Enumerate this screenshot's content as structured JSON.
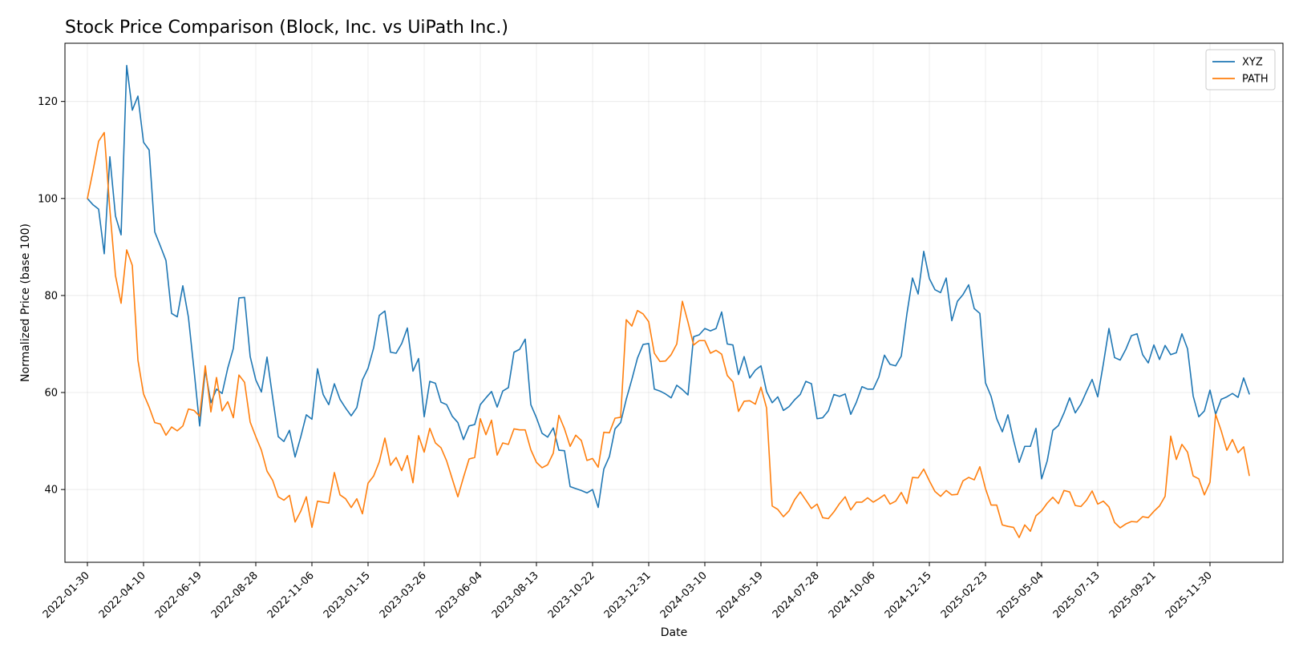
{
  "chart_data": {
    "type": "line",
    "title": "Stock Price Comparison (Block, Inc. vs UiPath Inc.)",
    "xlabel": "Date",
    "ylabel": "Normalized Price (base 100)",
    "xlim": [
      "2022-01-02",
      "2026-03-01"
    ],
    "ylim": [
      25,
      132
    ],
    "y_ticks": [
      40,
      60,
      80,
      100,
      120
    ],
    "x_ticks": [
      "2022-01-30",
      "2022-04-10",
      "2022-06-19",
      "2022-08-28",
      "2022-11-06",
      "2023-01-15",
      "2023-03-26",
      "2023-06-04",
      "2023-08-13",
      "2023-10-22",
      "2023-12-31",
      "2024-03-10",
      "2024-05-19",
      "2024-07-28",
      "2024-10-06",
      "2024-12-15",
      "2025-02-23",
      "2025-05-04",
      "2025-07-13",
      "2025-09-21",
      "2025-11-30"
    ],
    "grid": true,
    "legend_position": "upper right",
    "x_start": "2022-01-30",
    "x_step_days": 7,
    "series": [
      {
        "name": "XYZ",
        "color": "#1f77b4",
        "values": [
          100,
          98.7,
          97.8,
          88.6,
          108.6,
          96.4,
          92.5,
          127.4,
          118.2,
          121.1,
          111.6,
          110,
          93.1,
          90.2,
          87.2,
          76.3,
          75.6,
          82,
          75.5,
          64.6,
          53.1,
          64.6,
          57.9,
          60.7,
          59.8,
          65,
          69.1,
          79.5,
          79.6,
          67.4,
          62.6,
          60.1,
          67.3,
          59,
          50.9,
          49.9,
          52.2,
          46.7,
          50.8,
          55.4,
          54.5,
          64.9,
          59.6,
          57.5,
          61.8,
          58.6,
          56.8,
          55.2,
          56.9,
          62.6,
          65,
          69.2,
          75.9,
          76.8,
          68.3,
          68.1,
          70.1,
          73.3,
          64.4,
          67,
          55,
          62.3,
          61.9,
          58,
          57.5,
          55.1,
          53.8,
          50.3,
          53.1,
          53.4,
          57.5,
          58.9,
          60.2,
          57,
          60.3,
          61,
          68.3,
          68.9,
          71,
          57.5,
          54.8,
          51.6,
          50.8,
          52.7,
          48.1,
          48,
          40.6,
          40.2,
          39.8,
          39.3,
          40,
          36.3,
          44.2,
          46.8,
          52.5,
          53.8,
          58.6,
          62.7,
          67.1,
          69.9,
          70.1,
          60.7,
          60.3,
          59.7,
          58.9,
          61.5,
          60.6,
          59.5,
          71.5,
          71.9,
          73.2,
          72.7,
          73.2,
          76.6,
          70,
          69.8,
          63.7,
          67.4,
          63,
          64.6,
          65.5,
          60.2,
          57.9,
          59.1,
          56.3,
          57.1,
          58.5,
          59.6,
          62.3,
          61.8,
          54.6,
          54.8,
          56.2,
          59.6,
          59.2,
          59.7,
          55.5,
          58,
          61.2,
          60.7,
          60.7,
          63.2,
          67.7,
          65.8,
          65.5,
          67.5,
          76.2,
          83.6,
          80.3,
          89.1,
          83.5,
          81.2,
          80.6,
          83.6,
          74.8,
          78.8,
          80.2,
          82.2,
          77.3,
          76.3,
          62,
          59.2,
          54.6,
          51.9,
          55.4,
          50.2,
          45.6,
          48.9,
          48.9,
          52.6,
          42.2,
          45.9,
          52.2,
          53.2,
          55.8,
          58.9,
          55.8,
          57.6,
          60.2,
          62.7,
          59.1,
          65.9,
          73.2,
          67.2,
          66.7,
          68.9,
          71.7,
          72.1,
          67.8,
          66.1,
          69.8,
          66.8,
          69.7,
          67.8,
          68.2,
          72.1,
          69,
          59.3,
          55,
          56.2,
          60.5,
          55.5,
          58.6,
          59.1,
          59.8,
          59,
          63,
          59.7
        ]
      },
      {
        "name": "PATH",
        "color": "#ff7f0e",
        "values": [
          100,
          105.7,
          111.8,
          113.6,
          97.7,
          84.1,
          78.4,
          89.4,
          86.2,
          66.7,
          59.7,
          57,
          53.8,
          53.5,
          51.2,
          52.9,
          52.1,
          53.1,
          56.6,
          56.3,
          55.1,
          65.5,
          56,
          63.1,
          56.2,
          58.1,
          54.8,
          63.6,
          62.1,
          53.9,
          50.9,
          48.1,
          43.8,
          41.9,
          38.5,
          37.8,
          38.8,
          33.3,
          35.5,
          38.5,
          32.2,
          37.6,
          37.4,
          37.2,
          43.5,
          38.9,
          38.1,
          36.3,
          38.1,
          35,
          41.3,
          42.8,
          45.7,
          50.6,
          45,
          46.6,
          43.9,
          47,
          41.4,
          51.1,
          47.7,
          52.6,
          49.6,
          48.6,
          45.9,
          42.2,
          38.5,
          42.5,
          46.3,
          46.6,
          54.6,
          51.3,
          54.3,
          47.1,
          49.6,
          49.3,
          52.5,
          52.3,
          52.3,
          48.2,
          45.6,
          44.5,
          45.1,
          47.5,
          55.3,
          52.5,
          48.9,
          51.2,
          50.1,
          46,
          46.4,
          44.6,
          51.8,
          51.7,
          54.7,
          54.9,
          75,
          73.7,
          76.9,
          76.2,
          74.6,
          68.1,
          66.4,
          66.5,
          67.8,
          70,
          78.8,
          74.5,
          69.8,
          70.7,
          70.7,
          68.1,
          68.7,
          67.9,
          63.5,
          62.2,
          56.1,
          58.2,
          58.3,
          57.6,
          61.1,
          56.8,
          36.6,
          35.9,
          34.4,
          35.6,
          37.9,
          39.5,
          37.8,
          36.1,
          37,
          34.2,
          34,
          35.4,
          37.1,
          38.5,
          35.8,
          37.4,
          37.4,
          38.3,
          37.4,
          38.1,
          38.9,
          37,
          37.6,
          39.4,
          37.1,
          42.5,
          42.4,
          44.2,
          41.8,
          39.6,
          38.6,
          39.8,
          38.9,
          39,
          41.8,
          42.5,
          42,
          44.7,
          40.2,
          36.8,
          36.8,
          32.7,
          32.4,
          32.2,
          30.1,
          32.7,
          31.4,
          34.6,
          35.6,
          37.2,
          38.4,
          37.1,
          39.8,
          39.5,
          36.7,
          36.5,
          37.8,
          39.7,
          37,
          37.6,
          36.4,
          33.2,
          32.1,
          32.9,
          33.4,
          33.3,
          34.4,
          34.2,
          35.5,
          36.6,
          38.6,
          51,
          46.2,
          49.3,
          47.7,
          42.8,
          42.2,
          38.9,
          41.5,
          55.5,
          52.1,
          48.1,
          50.3,
          47.6,
          48.8,
          42.9
        ]
      }
    ]
  }
}
